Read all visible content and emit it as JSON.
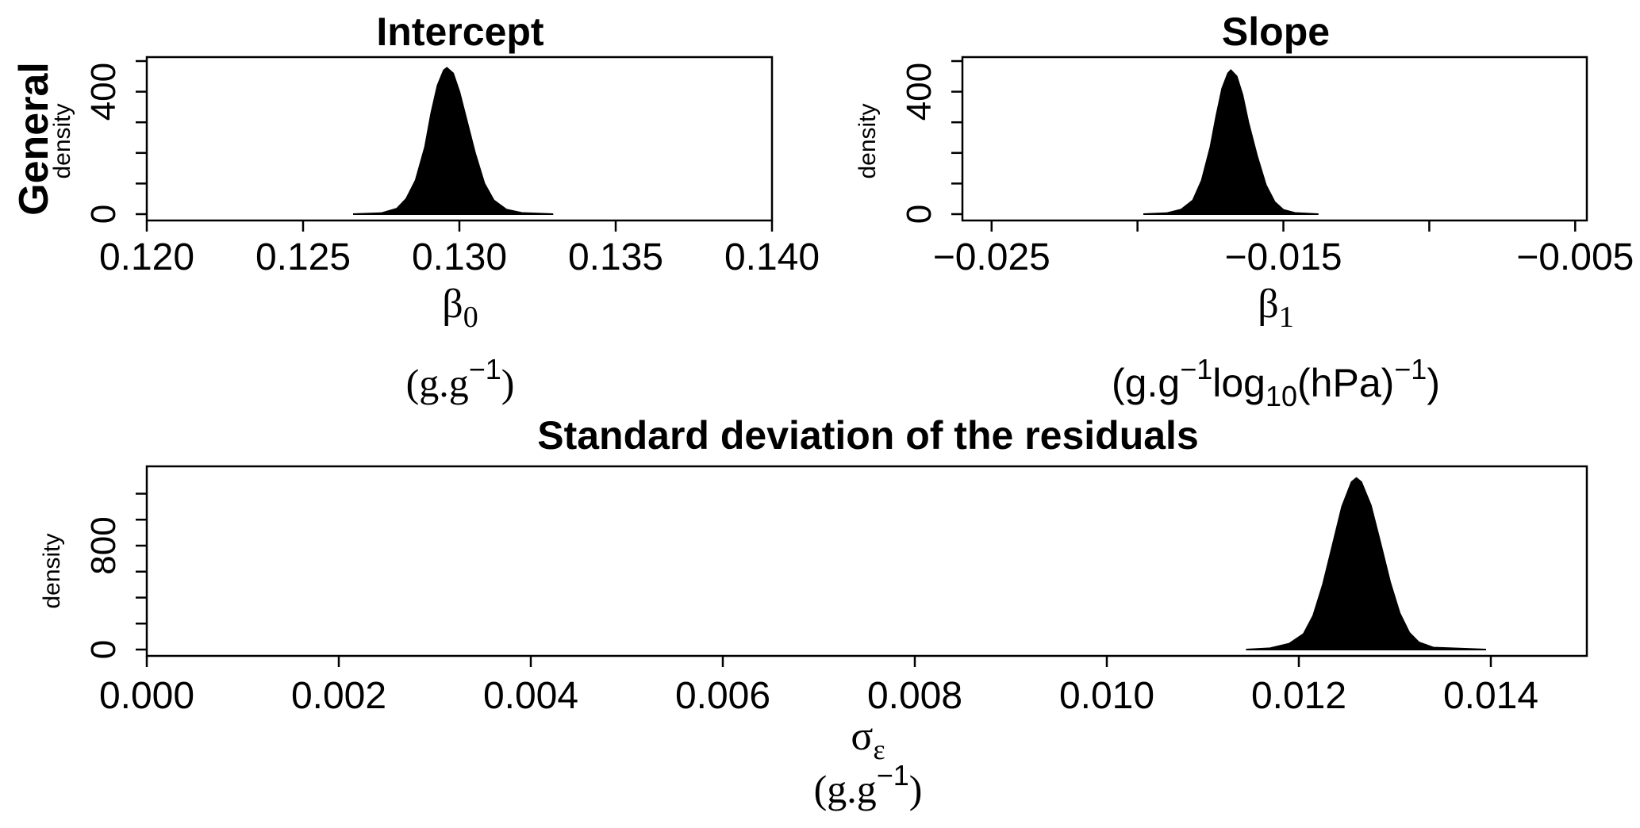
{
  "row_label": "General",
  "chart_data": [
    {
      "type": "area",
      "title": "Intercept",
      "ylabel": "density",
      "xlabel_symbol": "β",
      "xlabel_sub": "0",
      "unit": {
        "open": "(g.g",
        "sup": "−1",
        "close": ")"
      },
      "xlim": [
        0.12,
        0.14
      ],
      "ylim": [
        0,
        500
      ],
      "xticks": [
        0.12,
        0.125,
        0.13,
        0.135,
        0.14
      ],
      "xtick_labels": [
        "0.120",
        "0.125",
        "0.130",
        "0.135",
        "0.140"
      ],
      "yticks_labeled": [
        0,
        400
      ],
      "yticks_minor": [
        100,
        200,
        300,
        500
      ],
      "series": [
        {
          "x": [
            0.1266,
            0.1275,
            0.128,
            0.1283,
            0.1286,
            0.1289,
            0.1291,
            0.1293,
            0.1295,
            0.1296,
            0.1298,
            0.13,
            0.1302,
            0.1305,
            0.1308,
            0.1311,
            0.1315,
            0.132,
            0.133
          ],
          "y": [
            0,
            3,
            18,
            50,
            110,
            220,
            330,
            420,
            470,
            478,
            460,
            400,
            320,
            200,
            100,
            45,
            15,
            4,
            0
          ]
        }
      ]
    },
    {
      "type": "area",
      "title": "Slope",
      "ylabel": "density",
      "xlabel_symbol": "β",
      "xlabel_sub": "1",
      "unit": {
        "open": "(g.g",
        "sup": "−1",
        "mid": "log",
        "sub": "10",
        "tail": "(hPa)",
        "sup2": "−1",
        "close": ")"
      },
      "xlim": [
        -0.026,
        -0.0046
      ],
      "ylim": [
        0,
        500
      ],
      "xticks": [
        -0.025,
        -0.02,
        -0.015,
        -0.01,
        -0.005
      ],
      "xtick_labels": [
        "−0.025",
        "",
        "−0.015",
        "",
        "−0.005"
      ],
      "yticks_labeled": [
        0,
        400
      ],
      "yticks_minor": [
        100,
        200,
        300,
        500
      ],
      "series": [
        {
          "x": [
            -0.0198,
            -0.019,
            -0.0185,
            -0.0181,
            -0.0178,
            -0.0175,
            -0.0173,
            -0.0171,
            -0.0169,
            -0.0168,
            -0.0166,
            -0.0164,
            -0.0162,
            -0.0159,
            -0.0156,
            -0.0153,
            -0.015,
            -0.0146,
            -0.0138
          ],
          "y": [
            0,
            3,
            15,
            45,
            110,
            220,
            320,
            410,
            460,
            470,
            450,
            390,
            300,
            190,
            95,
            40,
            14,
            4,
            0
          ]
        }
      ]
    },
    {
      "type": "area",
      "title": "Standard deviation of the residuals",
      "ylabel": "density",
      "xlabel_symbol": "σ",
      "xlabel_sub": "ε",
      "unit": {
        "open": "(g.g",
        "sup": "−1",
        "close": ")"
      },
      "xlim": [
        0,
        0.015
      ],
      "ylim": [
        0,
        1380
      ],
      "xticks": [
        0,
        0.002,
        0.004,
        0.006,
        0.008,
        0.01,
        0.012,
        0.014
      ],
      "xtick_labels": [
        "0.000",
        "0.002",
        "0.004",
        "0.006",
        "0.008",
        "0.010",
        "0.012",
        "0.014"
      ],
      "yticks_labeled": [
        0,
        800
      ],
      "yticks_minor": [
        200,
        400,
        600,
        1000,
        1200
      ],
      "series": [
        {
          "x": [
            0.01145,
            0.0117,
            0.0119,
            0.01205,
            0.01215,
            0.01225,
            0.01235,
            0.01245,
            0.01255,
            0.0126,
            0.01265,
            0.01275,
            0.01285,
            0.01295,
            0.01305,
            0.01315,
            0.01325,
            0.0134,
            0.01395
          ],
          "y": [
            0,
            10,
            45,
            120,
            260,
            500,
            800,
            1100,
            1290,
            1320,
            1290,
            1110,
            820,
            520,
            280,
            130,
            55,
            15,
            0
          ]
        }
      ]
    }
  ]
}
